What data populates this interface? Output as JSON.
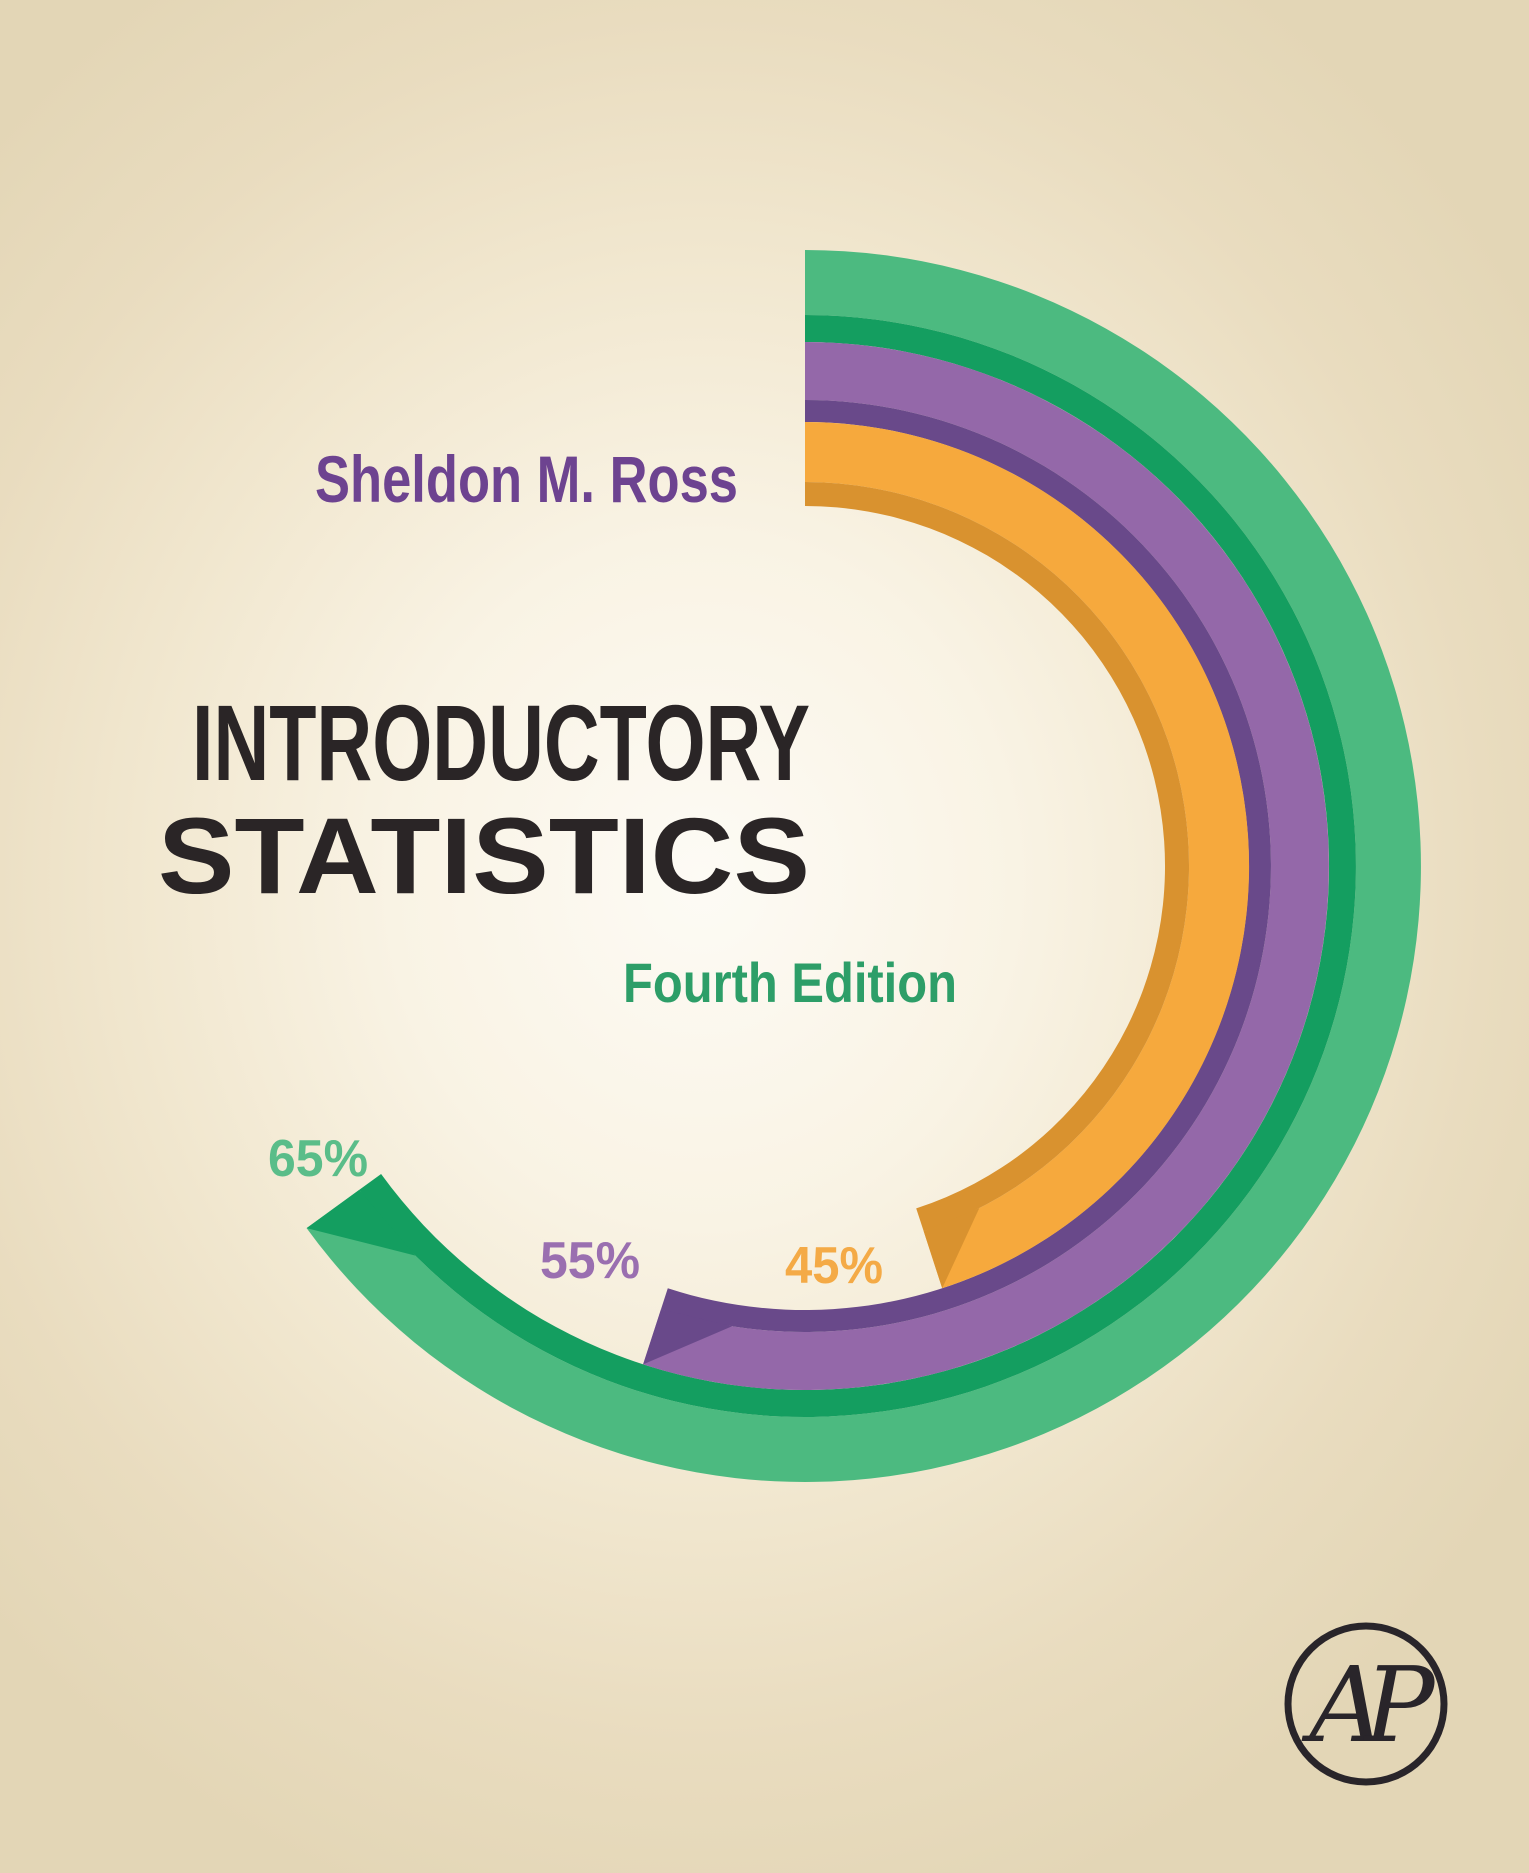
{
  "cover": {
    "author": "Sheldon M. Ross",
    "title_line1": "INTRODUCTORY",
    "title_line2": "STATISTICS",
    "edition": "Fourth Edition",
    "publisher_logo_text": "AP"
  },
  "colors": {
    "background_base": "#e3d6b6",
    "background_glow": "#fdfbf5",
    "author_purple": "#6d4390",
    "title_black": "#2a2526",
    "edition_green": "#2d9e68",
    "logo_ink": "#29252a"
  },
  "chart_data": {
    "type": "pie",
    "style": "three concentric donut arcs, all starting at 12 o'clock sweeping clockwise, each ring has a darker inner-edge stripe and a beveled end cap",
    "unit": "percent",
    "series": [
      {
        "name": "outer-green-ring",
        "value": 65,
        "label": "65%",
        "color": "#4cba80",
        "color_dark": "#149e60",
        "label_color": "#5abd89"
      },
      {
        "name": "middle-purple-ring",
        "value": 55,
        "label": "55%",
        "color": "#9468a9",
        "color_dark": "#69498a",
        "label_color": "#9a6fb0"
      },
      {
        "name": "inner-orange-ring",
        "value": 45,
        "label": "45%",
        "color": "#f6a93d",
        "color_dark": "#d9922f",
        "label_color": "#f4aa46"
      }
    ]
  }
}
